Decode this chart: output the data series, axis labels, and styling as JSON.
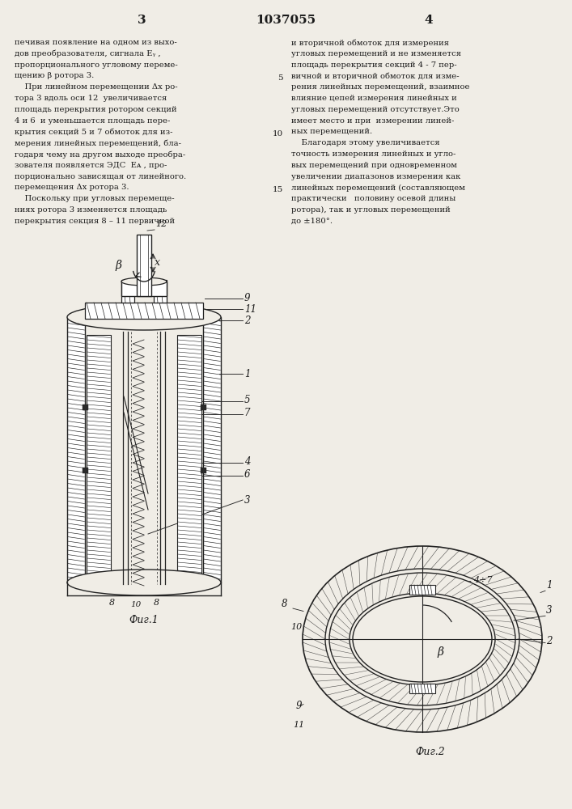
{
  "page_number_left": "3",
  "patent_number": "1037055",
  "page_number_right": "4",
  "background_color": "#f0ede6",
  "text_color": "#1a1a1a",
  "line_color": "#222222",
  "left_column_text": [
    "печивая появление на одном из выхо-",
    "дов преобразователя, сигнала Еᵧ ,",
    "пропорционального угловому переме-",
    "щению β ротора 3.",
    "    При линейном перемещении Δx ро-",
    "тора 3 вдоль оси 12  увеличивается",
    "площадь перекрытия ротором секций",
    "4 и 6  и уменьшается площадь пере-",
    "крытия секций 5 и 7 обмоток для из-",
    "мерения линейных перемещений, бла-",
    "годаря чему на другом выходе преобра-",
    "зователя появляется ЭДС  Еᴀ , про-",
    "порционально зависящая от линейного.",
    "перемещения Δx ротора 3.",
    "    Поскольку при угловых перемеще-",
    "ниях ротора 3 изменяется площадь",
    "перекрытия секция 8 – 11 первичной"
  ],
  "right_column_text": [
    "и вторичной обмоток для измерения",
    "угловых перемещений и не изменяется",
    "площадь перекрытия секций 4 - 7 пер-",
    "вичной и вторичной обмоток для изме-",
    "рения линейных перемещений, взаимное",
    "влияние цепей измерения линейных и",
    "угловых перемещений отсутствует.Это",
    "имеет место и при  измерении линей-",
    "ных перемещений.",
    "    Благодаря этому увеличивается",
    "точность измерения линейных и угло-",
    "вых перемещений при одновременном",
    "увеличении диапазонов измерения как",
    "линейных перемещений (составляющем",
    "практически   половину осевой длины",
    "ротора), так и угловых перемещений",
    "до ±180°."
  ],
  "fig1_caption": "Фиг.1",
  "fig2_caption": "Фиг.2"
}
